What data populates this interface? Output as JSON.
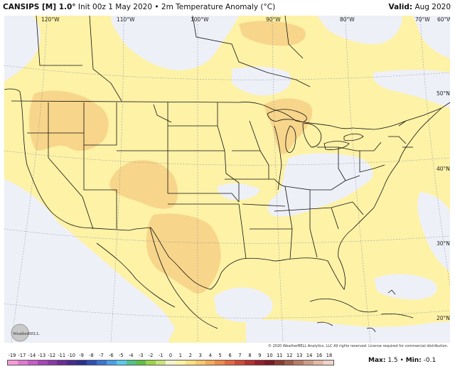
{
  "header": {
    "model": "CANSIPS [M] 1.0°",
    "init": "Init 00z 1 May 2020",
    "field": "2m Temperature Anomaly (°C)",
    "valid_label": "Valid:",
    "valid_value": "Aug 2020"
  },
  "map": {
    "longitude_labels": [
      "120°W",
      "110°W",
      "100°W",
      "90°W",
      "80°W",
      "70°W",
      "60°W"
    ],
    "latitude_labels": [
      "50°N",
      "40°N",
      "30°N",
      "20°N"
    ],
    "colors": {
      "ocean_neutral": "#eef0f8",
      "warm_light": "#fdf2a6",
      "warm_medium": "#f7d58a",
      "borders": "#111111"
    }
  },
  "copyright": "© 2020 WeatherBELL Analytics, LLC All rights reserved. License required for commercial distribution.",
  "logo": {
    "text": "WeatherBELL"
  },
  "legend": {
    "ticks": [
      "-19",
      "-17",
      "-14",
      "-13",
      "-12",
      "-11",
      "-10",
      "-9",
      "-8",
      "-7",
      "-6",
      "-5",
      "-4",
      "-3",
      "-2",
      "-1",
      "0",
      "1",
      "2",
      "3",
      "4",
      "5",
      "6",
      "7",
      "8",
      "9",
      "10",
      "11",
      "12",
      "13",
      "14",
      "16",
      "18"
    ],
    "colors": [
      "#f59bd9",
      "#e07ad0",
      "#c85bc8",
      "#a845b9",
      "#8a38a8",
      "#6b2c96",
      "#4a2b8a",
      "#2b2f8f",
      "#2f4fb3",
      "#3a74d0",
      "#4aa0e6",
      "#5cc8ec",
      "#4fc28a",
      "#5fbf47",
      "#9ad44a",
      "#c9e37a",
      "#f5f3ce",
      "#fdf2a6",
      "#fde080",
      "#f9c86a",
      "#f4ab55",
      "#ee8a46",
      "#e2683d",
      "#cf4a36",
      "#b5302f",
      "#96202b",
      "#7a1a26",
      "#8a3c33",
      "#a05c4a",
      "#b87c66",
      "#cf9c88",
      "#e2b9a8",
      "#f0d3c8"
    ]
  },
  "stats": {
    "max_label": "Max:",
    "max_value": "1.5",
    "sep": "•",
    "min_label": "Min:",
    "min_value": "-0.1"
  }
}
